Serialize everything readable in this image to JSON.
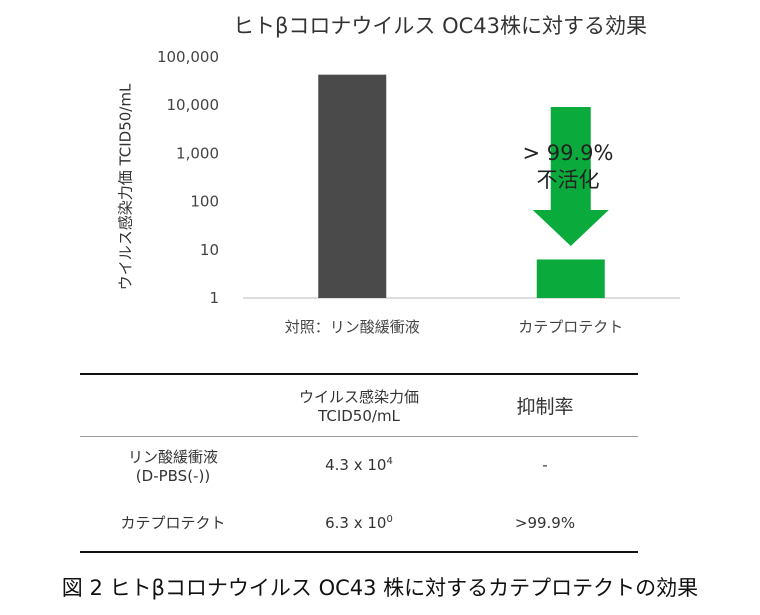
{
  "chart_data": {
    "type": "bar",
    "title": "ヒトβコロナウイルス OC43株に対する効果",
    "ylabel": "ウイルス感染力価 TCID50/mL",
    "xlabel": "",
    "yscale": "log",
    "ylim": [
      1,
      100000
    ],
    "yticks": [
      1,
      10,
      100,
      1000,
      10000,
      100000
    ],
    "ytick_labels": [
      "1",
      "10",
      "100",
      "1,000",
      "10,000",
      "100,000"
    ],
    "categories": [
      "対照：リン酸緩衝液",
      "カテプロテクト"
    ],
    "values": [
      43000,
      6.3
    ],
    "bar_colors": [
      "#4a4a4a",
      "#0aab3c"
    ],
    "annotation": {
      "line1": "> 99.9%",
      "line2": "不活化",
      "arrow_color": "#0aab3c"
    }
  },
  "table": {
    "header": {
      "col1": "",
      "col2_line1": "ウイルス感染力価",
      "col2_line2": "TCID50/mL",
      "col3": "抑制率"
    },
    "rows": [
      {
        "name_line1": "リン酸緩衝液",
        "name_line2": "(D-PBS(-))",
        "titer_base": "4.3 x 10",
        "titer_exp": "4",
        "rate": "-"
      },
      {
        "name_line1": "カテプロテクト",
        "titer_base": "6.3 x 10",
        "titer_exp": "0",
        "rate": ">99.9%"
      }
    ]
  },
  "caption": "図 2  ヒトβコロナウイルス  OC43 株に対するカテプロテクトの効果"
}
